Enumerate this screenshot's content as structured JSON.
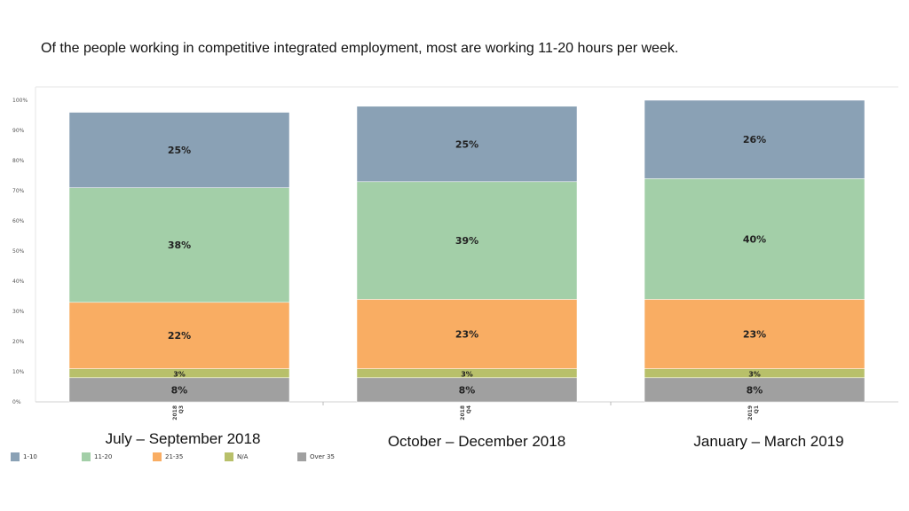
{
  "headline": "Of the people working in competitive integrated employment, most are working 11-20 hours per week.",
  "period_labels": [
    "July – September 2018",
    "October – December 2018",
    "January – March 2019"
  ],
  "legend": [
    {
      "label": "1-10",
      "color": "#8aa1b5"
    },
    {
      "label": "11-20",
      "color": "#a3cfa8"
    },
    {
      "label": "21-35",
      "color": "#f9ad63"
    },
    {
      "label": "N/A",
      "color": "#b8c06a"
    },
    {
      "label": "Over 35",
      "color": "#a0a0a0"
    }
  ],
  "chart_data": {
    "type": "bar",
    "stacked": true,
    "categories": [
      "2018 Q3",
      "2018 Q4",
      "2019 Q1"
    ],
    "category_tick_lines": [
      [
        "2018",
        "Q3"
      ],
      [
        "2018",
        "Q4"
      ],
      [
        "2019",
        "Q1"
      ]
    ],
    "ylim": [
      0,
      100
    ],
    "yticks": [
      "0%",
      "10%",
      "20%",
      "30%",
      "40%",
      "50%",
      "60%",
      "70%",
      "80%",
      "90%",
      "100%"
    ],
    "series": [
      {
        "name": "Over 35",
        "color": "#a0a0a0",
        "values": [
          8,
          8,
          8
        ],
        "labels": [
          "8%",
          "8%",
          "8%"
        ]
      },
      {
        "name": "N/A",
        "color": "#b8c06a",
        "values": [
          3,
          3,
          3
        ],
        "labels": [
          "3%",
          "3%",
          "3%"
        ]
      },
      {
        "name": "21-35",
        "color": "#f9ad63",
        "values": [
          22,
          23,
          23
        ],
        "labels": [
          "22%",
          "23%",
          "23%"
        ]
      },
      {
        "name": "11-20",
        "color": "#a3cfa8",
        "values": [
          38,
          39,
          40
        ],
        "labels": [
          "38%",
          "39%",
          "40%"
        ]
      },
      {
        "name": "1-10",
        "color": "#8aa1b5",
        "values": [
          25,
          25,
          26
        ],
        "labels": [
          "25%",
          "25%",
          "26%"
        ]
      }
    ]
  }
}
